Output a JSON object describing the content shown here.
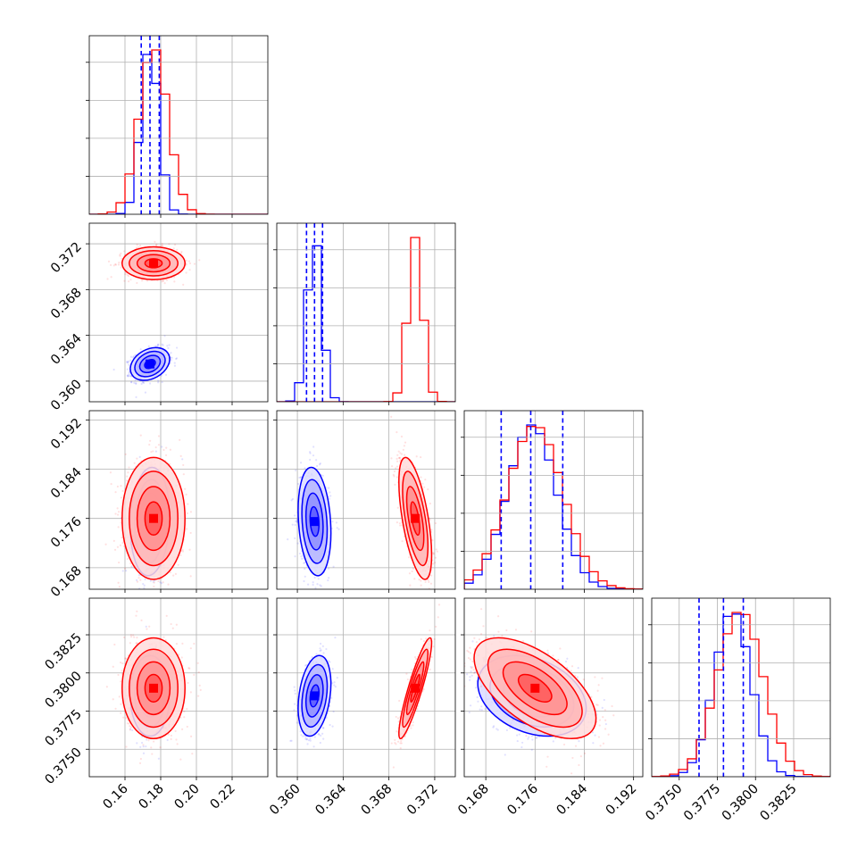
{
  "chart_data": {
    "type": "scatter",
    "subtype": "corner-plot",
    "grid": true,
    "series_colors": {
      "blue": "#0000ff",
      "red": "#ff0000"
    },
    "parameters": [
      {
        "range": [
          0.14,
          0.24
        ],
        "ticks": [
          "0.16",
          "0.18",
          "0.20",
          "0.22"
        ]
      },
      {
        "range": [
          0.3582,
          0.3738
        ],
        "ticks": [
          "0.360",
          "0.364",
          "0.368",
          "0.372"
        ]
      },
      {
        "range": [
          0.1645,
          0.1935
        ],
        "ticks": [
          "0.168",
          "0.176",
          "0.184",
          "0.192"
        ]
      },
      {
        "range": [
          0.3732,
          0.3849
        ],
        "ticks": [
          "0.3750",
          "0.3775",
          "0.3800",
          "0.3825"
        ]
      }
    ],
    "series": [
      {
        "color": "blue",
        "median": [
          0.174,
          0.3615,
          0.1755,
          0.3785
        ],
        "sigma": [
          0.005,
          0.00065,
          0.004,
          0.0012
        ],
        "quantile_lines": [
          [
            0.1691,
            0.174,
            0.1792
          ],
          [
            0.3608,
            0.3615,
            0.3622
          ],
          [
            0.1705,
            0.1753,
            0.1805
          ],
          [
            0.3763,
            0.3779,
            0.3792
          ]
        ],
        "correlations": {
          "0-1": 0.3,
          "0-2": 0.1,
          "0-3": 0.0,
          "1-2": -0.2,
          "1-3": 0.3,
          "2-3": -0.3
        }
      },
      {
        "color": "red",
        "median": [
          0.176,
          0.3703,
          0.176,
          0.379
        ],
        "sigma": [
          0.008,
          0.00065,
          0.0045,
          0.0015
        ],
        "correlations": {
          "0-1": 0.0,
          "0-2": 0.0,
          "0-3": 0.0,
          "1-2": -0.6,
          "1-3": 0.9,
          "2-3": -0.6
        }
      }
    ]
  }
}
